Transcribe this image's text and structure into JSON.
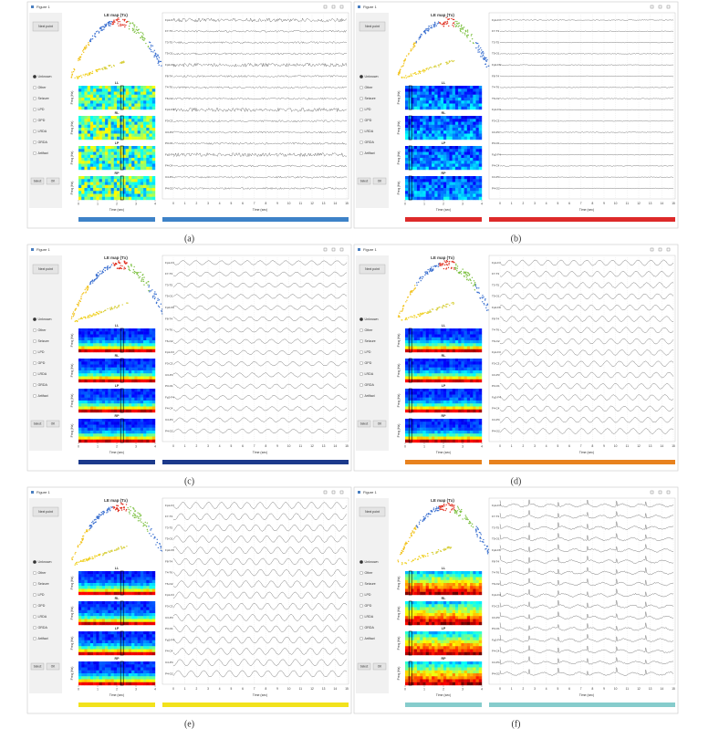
{
  "shared": {
    "window_title": "Figure 1",
    "button": "Next point",
    "options": [
      "Unknown",
      "Other",
      "Seizure",
      "LPD",
      "GPD",
      "LRDA",
      "GRDA",
      "Artifact"
    ],
    "select_button": "Select",
    "ok_button": "OK",
    "map_title": "LE map (Tx)",
    "spectrogram_labels": [
      "LL",
      "RL",
      "LP",
      "RP"
    ],
    "freq_label": "Freq (Hz)",
    "time_label": "Time (sec)",
    "spec_time_range": [
      0,
      4
    ],
    "spec_time_ticks": [
      0,
      1,
      2,
      3,
      4
    ],
    "eeg_time_range": [
      0,
      15
    ],
    "eeg_time_ticks": [
      0,
      1,
      2,
      3,
      4,
      5,
      6,
      7,
      8,
      9,
      10,
      11,
      12,
      13,
      14,
      15
    ],
    "channels": [
      "Fp1-F7",
      "F7-T3",
      "T3-T5",
      "T5-O1",
      "Fp2-F8",
      "F8-T4",
      "T4-T6",
      "T6-O2",
      "Fp1-F3",
      "F3-C3",
      "C3-P3",
      "P3-O1",
      "Fp2-F4",
      "F4-C4",
      "C4-P4",
      "P4-O2"
    ]
  },
  "panels": [
    {
      "caption": "(a)",
      "color": "#3d82c8",
      "spectrogram_style": "mixed"
    },
    {
      "caption": "(b)",
      "color": "#dd2a2a",
      "spectrogram_style": "dark"
    },
    {
      "caption": "(c)",
      "color": "#1c3a8c",
      "spectrogram_style": "layered"
    },
    {
      "caption": "(d)",
      "color": "#e8821e",
      "spectrogram_style": "layered"
    },
    {
      "caption": "(e)",
      "color": "#f2e21c",
      "spectrogram_style": "layered"
    },
    {
      "caption": "(f)",
      "color": "#86cccc",
      "spectrogram_style": "hot"
    }
  ]
}
